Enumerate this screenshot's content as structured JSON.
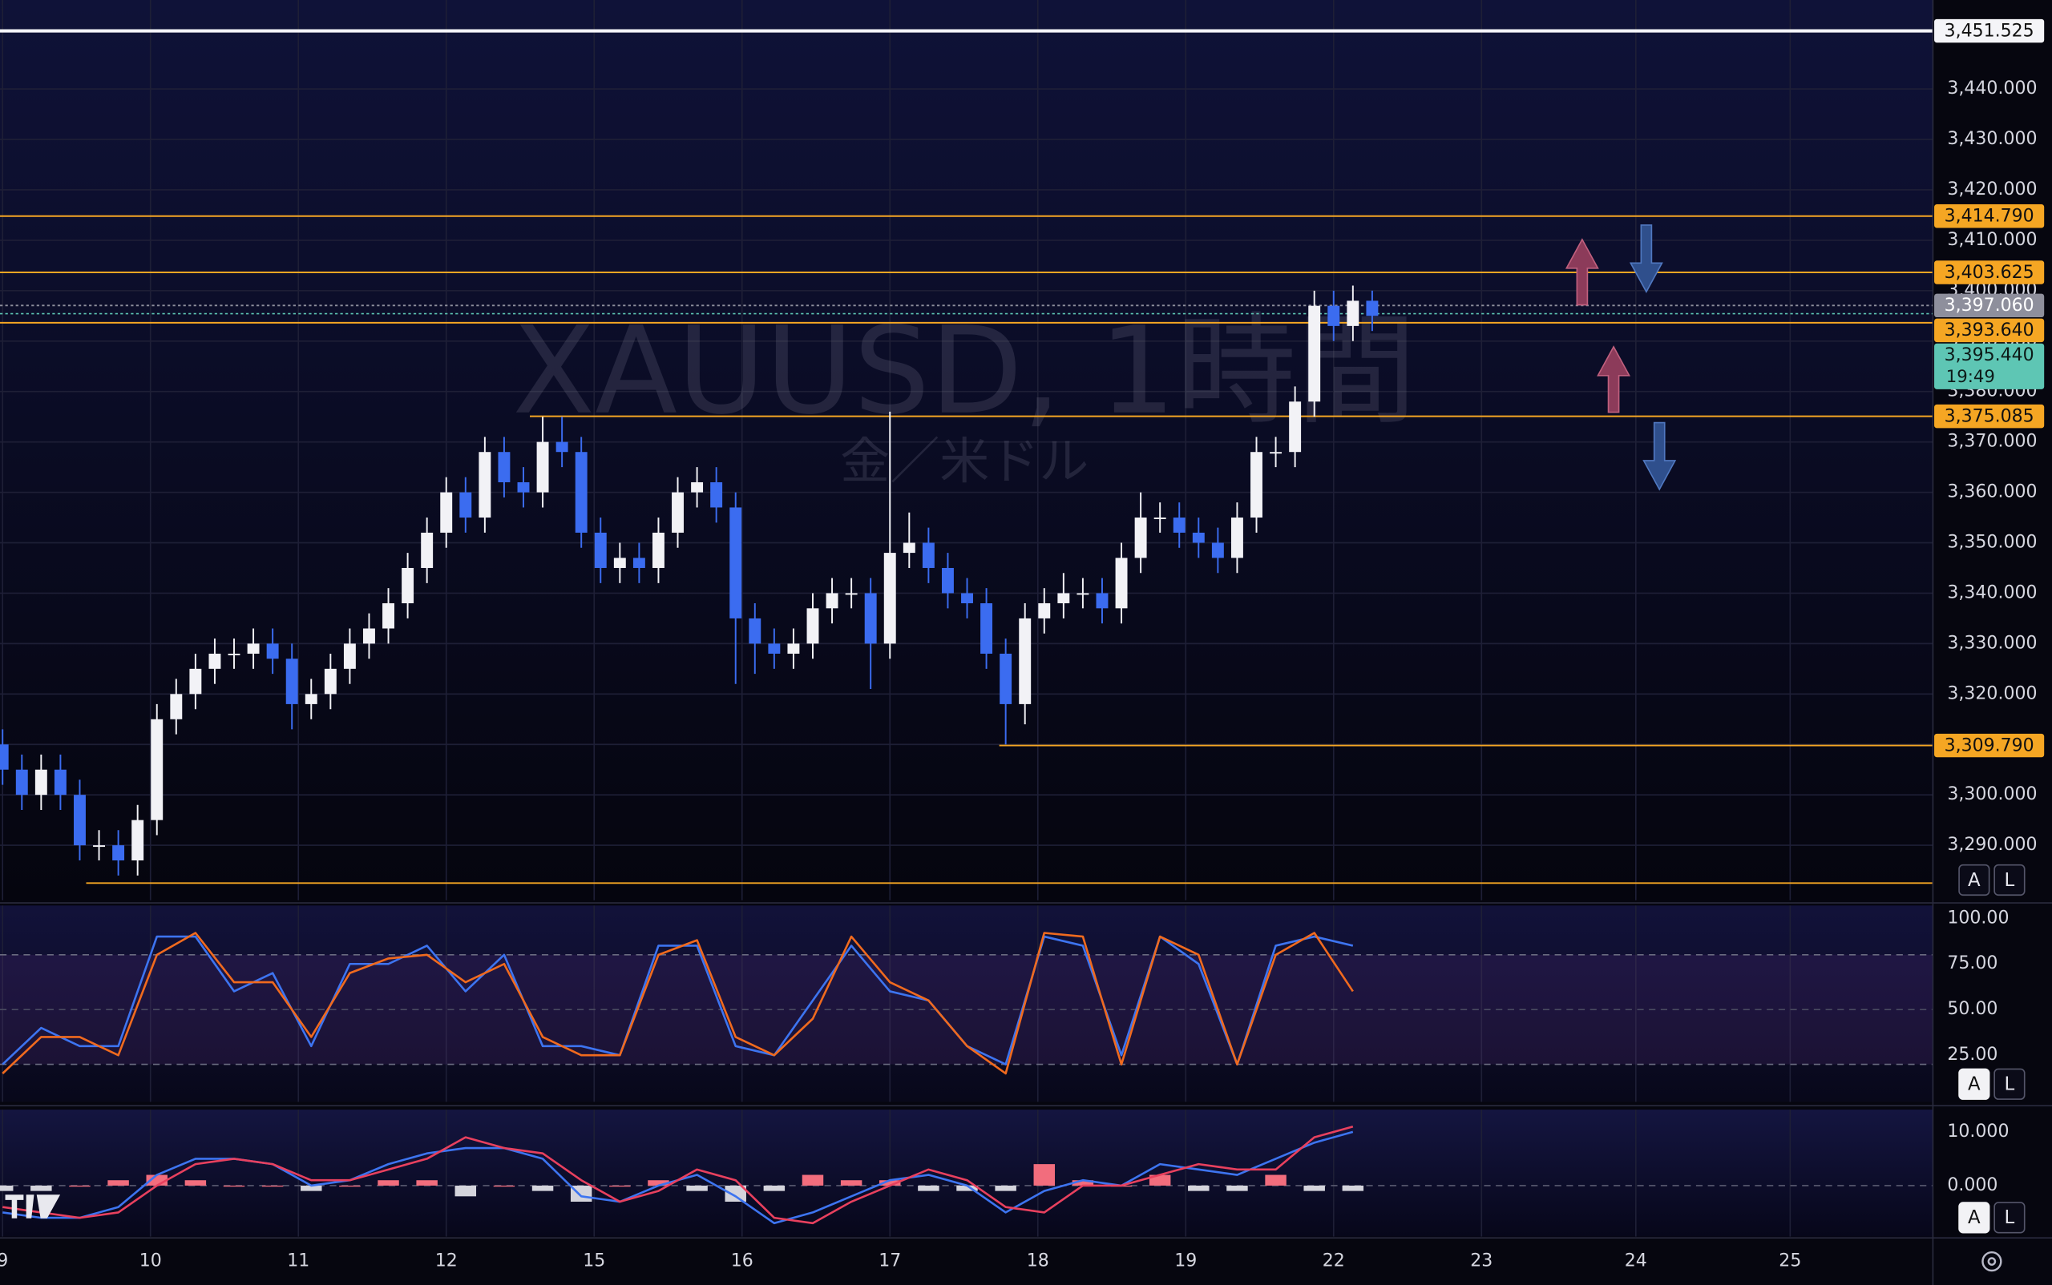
{
  "controls": {
    "auto": "A",
    "log": "L"
  },
  "chart_data": [
    {
      "type": "candlestick",
      "watermark": {
        "title": "XAUUSD, 1時間",
        "subtitle": "金／米ドル"
      },
      "x": [
        -23,
        -20,
        -17,
        -14,
        -11,
        -8,
        -5,
        -2,
        1,
        4,
        7,
        10,
        13,
        16,
        19,
        22,
        25,
        28,
        31,
        34,
        37,
        40,
        43,
        46,
        49,
        52,
        55,
        58,
        61,
        64,
        67,
        70,
        73,
        76,
        79,
        82,
        85,
        88,
        91,
        94,
        97,
        100,
        103,
        106,
        109,
        112,
        115,
        118,
        121,
        124,
        127,
        130,
        133,
        136,
        139,
        142,
        145,
        148,
        151,
        154,
        157,
        160,
        163,
        166,
        169,
        172,
        175,
        178,
        181,
        184,
        187,
        190
      ],
      "open": [
        3310,
        3305,
        3300,
        3305,
        3300,
        3290,
        3290,
        3287,
        3295,
        3315,
        3320,
        3325,
        3328,
        3328,
        3330,
        3327,
        3318,
        3320,
        3325,
        3330,
        3333,
        3338,
        3345,
        3352,
        3360,
        3355,
        3368,
        3362,
        3360,
        3370,
        3368,
        3352,
        3345,
        3347,
        3345,
        3352,
        3360,
        3362,
        3357,
        3335,
        3330,
        3328,
        3330,
        3337,
        3340,
        3340,
        3330,
        3348,
        3350,
        3345,
        3340,
        3338,
        3328,
        3318,
        3335,
        3338,
        3340,
        3340,
        3337,
        3347,
        3355,
        3355,
        3352,
        3350,
        3347,
        3355,
        3368,
        3368,
        3378,
        3397,
        3393,
        3398
      ],
      "high": [
        3313,
        3308,
        3308,
        3308,
        3303,
        3293,
        3293,
        3298,
        3318,
        3323,
        3328,
        3331,
        3331,
        3333,
        3333,
        3330,
        3323,
        3328,
        3333,
        3336,
        3341,
        3348,
        3355,
        3363,
        3363,
        3371,
        3371,
        3365,
        3375,
        3375,
        3371,
        3355,
        3350,
        3350,
        3355,
        3363,
        3365,
        3365,
        3360,
        3338,
        3333,
        3333,
        3340,
        3343,
        3343,
        3343,
        3376,
        3356,
        3353,
        3348,
        3343,
        3341,
        3331,
        3338,
        3341,
        3344,
        3343,
        3343,
        3350,
        3360,
        3358,
        3358,
        3355,
        3353,
        3358,
        3371,
        3371,
        3381,
        3400,
        3400,
        3401,
        3400
      ],
      "low": [
        3302,
        3297,
        3297,
        3297,
        3287,
        3287,
        3284,
        3284,
        3292,
        3312,
        3317,
        3322,
        3325,
        3325,
        3324,
        3313,
        3315,
        3317,
        3322,
        3327,
        3330,
        3335,
        3342,
        3349,
        3352,
        3352,
        3359,
        3357,
        3357,
        3365,
        3349,
        3342,
        3342,
        3342,
        3342,
        3349,
        3357,
        3354,
        3322,
        3324,
        3325,
        3325,
        3327,
        3334,
        3337,
        3321,
        3327,
        3345,
        3342,
        3337,
        3335,
        3325,
        3310,
        3314,
        3332,
        3335,
        3337,
        3334,
        3334,
        3344,
        3352,
        3349,
        3347,
        3344,
        3344,
        3352,
        3365,
        3365,
        3375,
        3390,
        3390,
        3392
      ],
      "close": [
        3305,
        3300,
        3305,
        3300,
        3290,
        3290,
        3287,
        3295,
        3315,
        3320,
        3325,
        3328,
        3328,
        3330,
        3327,
        3318,
        3320,
        3325,
        3330,
        3333,
        3338,
        3345,
        3352,
        3360,
        3355,
        3368,
        3362,
        3360,
        3370,
        3368,
        3352,
        3345,
        3347,
        3345,
        3352,
        3360,
        3362,
        3357,
        3335,
        3330,
        3328,
        3330,
        3337,
        3340,
        3340,
        3330,
        3348,
        3350,
        3345,
        3340,
        3338,
        3328,
        3318,
        3335,
        3338,
        3340,
        3340,
        3337,
        3347,
        3355,
        3355,
        3352,
        3350,
        3347,
        3355,
        3368,
        3368,
        3378,
        3397,
        3393,
        3398,
        3395
      ],
      "up_color": "#f2f2f6",
      "down_color": "#3b6cf0",
      "xlim": [
        -23.4,
        277.2
      ],
      "ylim": [
        3279.09,
        3457.65
      ],
      "grid": true,
      "yticks": [
        {
          "value": 3290,
          "label": "3,290.000"
        },
        {
          "value": 3300,
          "label": "3,300.000"
        },
        {
          "value": 3310,
          "label": "3,310.000"
        },
        {
          "value": 3320,
          "label": "3,320.000"
        },
        {
          "value": 3330,
          "label": "3,330.000"
        },
        {
          "value": 3340,
          "label": "3,340.000"
        },
        {
          "value": 3350,
          "label": "3,350.000"
        },
        {
          "value": 3360,
          "label": "3,360.000"
        },
        {
          "value": 3370,
          "label": "3,370.000"
        },
        {
          "value": 3380,
          "label": "3,380.000"
        },
        {
          "value": 3390,
          "label": "3,390.000"
        },
        {
          "value": 3400,
          "label": "3,400.000"
        },
        {
          "value": 3410,
          "label": "3,410.000"
        },
        {
          "value": 3420,
          "label": "3,420.000"
        },
        {
          "value": 3430,
          "label": "3,430.000"
        },
        {
          "value": 3440,
          "label": "3,440.000"
        }
      ],
      "levels": [
        {
          "value": 3451.525,
          "label": "3,451.525",
          "color": "#f4f4f8",
          "text_color": "#111111",
          "style": "solid"
        },
        {
          "value": 3414.79,
          "label": "3,414.790",
          "color": "#f5a623",
          "text_color": "#111111",
          "style": "solid"
        },
        {
          "value": 3403.625,
          "label": "3,403.625",
          "color": "#f5a623",
          "text_color": "#111111",
          "style": "solid"
        },
        {
          "value": 3397.06,
          "label": "3,397.060",
          "color": "#8e8f9c",
          "text_color": "#ffffff",
          "style": "dotted"
        },
        {
          "value": 3393.64,
          "label": "3,393.640",
          "color": "#f5a623",
          "text_color": "#111111",
          "style": "solid"
        },
        {
          "value": 3375.085,
          "label": "3,375.085",
          "color": "#f5a623",
          "text_color": "#111111",
          "style": "solid",
          "from_x": 59
        },
        {
          "value": 3309.79,
          "label": "3,309.790",
          "color": "#f5a623",
          "text_color": "#111111",
          "style": "solid",
          "from_x": 132
        },
        {
          "value": 3282.5,
          "color": "#f5a623",
          "style": "solid",
          "from_x": -10
        }
      ],
      "last_price": {
        "value": 3395.44,
        "label": "3,395.440",
        "countdown": "19:49",
        "color": "#5ec6b4",
        "text_color": "#0d1a18"
      }
    },
    {
      "type": "line",
      "x": [
        -23,
        -17,
        -11,
        -5,
        1,
        7,
        13,
        19,
        25,
        31,
        37,
        43,
        49,
        55,
        61,
        67,
        73,
        79,
        85,
        91,
        97,
        103,
        109,
        115,
        121,
        127,
        133,
        139,
        145,
        151,
        157,
        163,
        169,
        175,
        181,
        187
      ],
      "series": [
        {
          "color": "#3d74f0",
          "values": [
            20,
            40,
            30,
            30,
            90,
            90,
            60,
            70,
            30,
            75,
            75,
            85,
            60,
            80,
            30,
            30,
            25,
            85,
            85,
            30,
            25,
            55,
            85,
            60,
            55,
            30,
            20,
            90,
            85,
            25,
            90,
            75,
            20,
            85,
            90,
            85
          ]
        },
        {
          "color": "#f06a1e",
          "values": [
            15,
            35,
            35,
            25,
            80,
            92,
            65,
            65,
            35,
            70,
            78,
            80,
            65,
            75,
            35,
            25,
            25,
            80,
            88,
            35,
            25,
            45,
            90,
            65,
            55,
            30,
            15,
            92,
            90,
            20,
            90,
            80,
            20,
            80,
            92,
            60
          ]
        }
      ],
      "band": [
        20,
        80
      ],
      "midline": 50,
      "xlim": [
        -23.4,
        277.2
      ],
      "ylim": [
        -0.5,
        107
      ],
      "yticks": [
        {
          "value": 100,
          "label": "100.00"
        },
        {
          "value": 75,
          "label": "75.00"
        },
        {
          "value": 50,
          "label": "50.00"
        },
        {
          "value": 25,
          "label": "25.00"
        }
      ]
    },
    {
      "type": "line",
      "x": [
        -23,
        -17,
        -11,
        -5,
        1,
        7,
        13,
        19,
        25,
        31,
        37,
        43,
        49,
        55,
        61,
        67,
        73,
        79,
        85,
        91,
        97,
        103,
        109,
        115,
        121,
        127,
        133,
        139,
        145,
        151,
        157,
        163,
        169,
        175,
        181,
        187
      ],
      "series": [
        {
          "color": "#3d74f0",
          "values": [
            -5,
            -6,
            -6,
            -4,
            2,
            5,
            5,
            4,
            0,
            1,
            4,
            6,
            7,
            7,
            5,
            -2,
            -3,
            0,
            2,
            -2,
            -7,
            -5,
            -2,
            1,
            2,
            0,
            -5,
            -1,
            1,
            0,
            4,
            3,
            2,
            5,
            8,
            10
          ]
        },
        {
          "color": "#e8405e",
          "values": [
            -4,
            -5,
            -6,
            -5,
            0,
            4,
            5,
            4,
            1,
            1,
            3,
            5,
            9,
            7,
            6,
            1,
            -3,
            -1,
            3,
            1,
            -6,
            -7,
            -3,
            0,
            3,
            1,
            -4,
            -5,
            0,
            0,
            2,
            4,
            3,
            3,
            9,
            11
          ]
        }
      ],
      "histogram": [
        -1,
        -1,
        0,
        1,
        2,
        1,
        0,
        0,
        -1,
        0,
        1,
        1,
        -2,
        0,
        -1,
        -3,
        0,
        1,
        -1,
        -3,
        -1,
        2,
        1,
        1,
        -1,
        -1,
        -1,
        4,
        1,
        0,
        2,
        -1,
        -1,
        2,
        -1,
        -1
      ],
      "histogram_colors": [
        "#f26d7d",
        "#d4d4dc"
      ],
      "zero_line": true,
      "xlim": [
        -23.4,
        277.2
      ],
      "ylim": [
        -9.5,
        14.15
      ],
      "yticks": [
        {
          "value": 10,
          "label": "10.000"
        },
        {
          "value": 0,
          "label": "0.000"
        }
      ],
      "xticks": [
        {
          "value": -23,
          "label": "9"
        },
        {
          "value": 0,
          "label": "10"
        },
        {
          "value": 23,
          "label": "11"
        },
        {
          "value": 46,
          "label": "12"
        },
        {
          "value": 69,
          "label": "15"
        },
        {
          "value": 92,
          "label": "16"
        },
        {
          "value": 115,
          "label": "17"
        },
        {
          "value": 138,
          "label": "18"
        },
        {
          "value": 161,
          "label": "19"
        },
        {
          "value": 184,
          "label": "22"
        },
        {
          "value": 207,
          "label": "23"
        },
        {
          "value": 231,
          "label": "24"
        },
        {
          "value": 255,
          "label": "25"
        }
      ]
    }
  ]
}
